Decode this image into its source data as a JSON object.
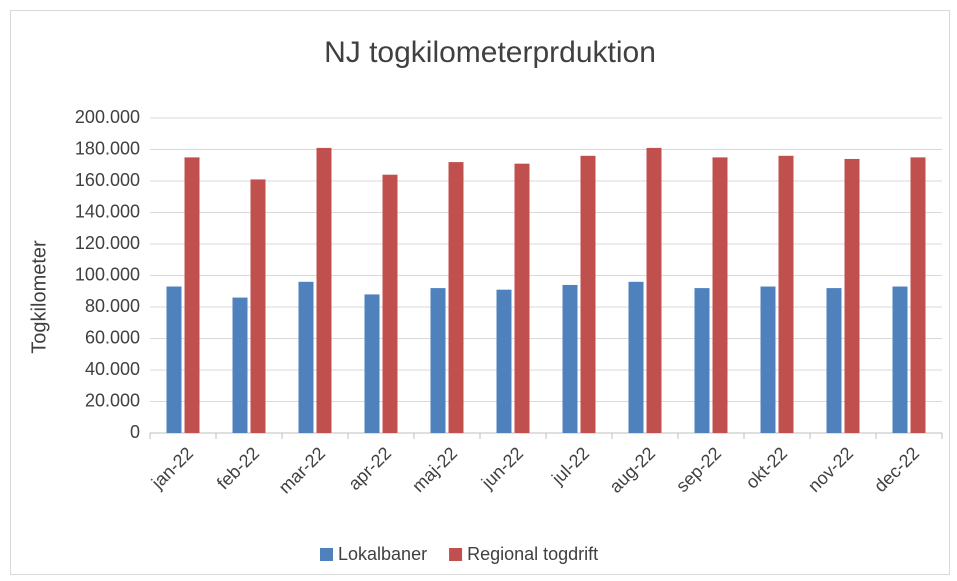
{
  "chart_data": {
    "type": "bar",
    "title": "NJ togkilometerprduktion",
    "y_label": "Togkilometer",
    "categories": [
      "jan-22",
      "feb-22",
      "mar-22",
      "apr-22",
      "maj-22",
      "jun-22",
      "jul-22",
      "aug-22",
      "sep-22",
      "okt-22",
      "nov-22",
      "dec-22"
    ],
    "series": [
      {
        "name": "Lokalbaner",
        "color": "#4f81bd",
        "values": [
          93000,
          86000,
          96000,
          88000,
          92000,
          91000,
          94000,
          96000,
          92000,
          93000,
          92000,
          93000
        ]
      },
      {
        "name": "Regional togdrift",
        "color": "#c0504d",
        "values": [
          175000,
          161000,
          181000,
          164000,
          172000,
          171000,
          176000,
          181000,
          175000,
          176000,
          174000,
          175000
        ]
      }
    ],
    "ylim": [
      0,
      200000
    ],
    "yticks": [
      0,
      {
        "value": 20000,
        "label": "20.000"
      },
      {
        "value": 40000,
        "label": "40.000"
      },
      {
        "value": 60000,
        "label": "60.000"
      },
      {
        "value": 80000,
        "label": "80.000"
      },
      {
        "value": 100000,
        "label": "100.000"
      },
      {
        "value": 120000,
        "label": "120.000"
      },
      {
        "value": 140000,
        "label": "140.000"
      },
      {
        "value": 160000,
        "label": "160.000"
      },
      {
        "value": 180000,
        "label": "180.000"
      },
      {
        "value": 200000,
        "label": "200.000"
      }
    ],
    "grid": true,
    "legend": "bottom"
  }
}
